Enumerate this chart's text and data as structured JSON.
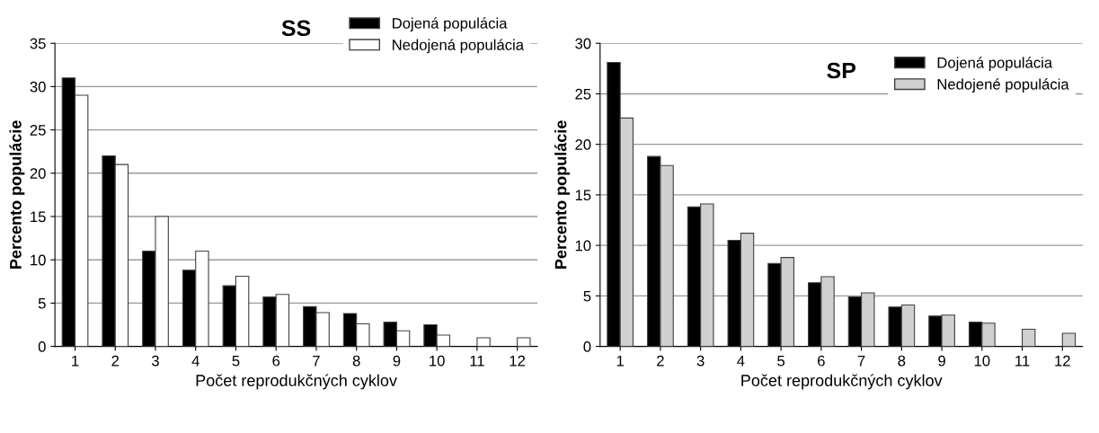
{
  "chart_data": [
    {
      "type": "bar",
      "title": "SS",
      "xlabel": "Počet reprodukčných cyklov",
      "ylabel": "Percento populácie",
      "categories": [
        "1",
        "2",
        "3",
        "4",
        "5",
        "6",
        "7",
        "8",
        "9",
        "10",
        "11",
        "12"
      ],
      "ylim": [
        0,
        35
      ],
      "yticks": [
        0,
        5,
        10,
        15,
        20,
        25,
        30,
        35
      ],
      "grid": "y",
      "legend": "top right",
      "series": [
        {
          "name": "Dojená populácia",
          "color": "#000000",
          "values": [
            31,
            22,
            11,
            8.8,
            7,
            5.7,
            4.6,
            3.8,
            2.8,
            2.5,
            null,
            null
          ]
        },
        {
          "name": "Nedojená populácia",
          "color": "#ffffff",
          "values": [
            29,
            21,
            15,
            11,
            8.1,
            6,
            3.9,
            2.6,
            1.8,
            1.3,
            1,
            1
          ]
        }
      ]
    },
    {
      "type": "bar",
      "title": "SP",
      "xlabel": "Počet reprodukčných cyklov",
      "ylabel": "Percento populácie",
      "categories": [
        "1",
        "2",
        "3",
        "4",
        "5",
        "6",
        "7",
        "8",
        "9",
        "10",
        "11",
        "12"
      ],
      "ylim": [
        0,
        30
      ],
      "yticks": [
        0,
        5,
        10,
        15,
        20,
        25,
        30
      ],
      "grid": "y",
      "legend": "top right",
      "series": [
        {
          "name": "Dojená populácia",
          "color": "#000000",
          "values": [
            28.1,
            18.8,
            13.8,
            10.5,
            8.2,
            6.3,
            4.9,
            3.9,
            3.0,
            2.4,
            null,
            null
          ]
        },
        {
          "name": "Nedojené populácia",
          "color": "#d0d0d0",
          "values": [
            22.6,
            17.9,
            14.1,
            11.2,
            8.8,
            6.9,
            5.3,
            4.1,
            3.1,
            2.3,
            1.7,
            1.3
          ]
        }
      ]
    }
  ]
}
